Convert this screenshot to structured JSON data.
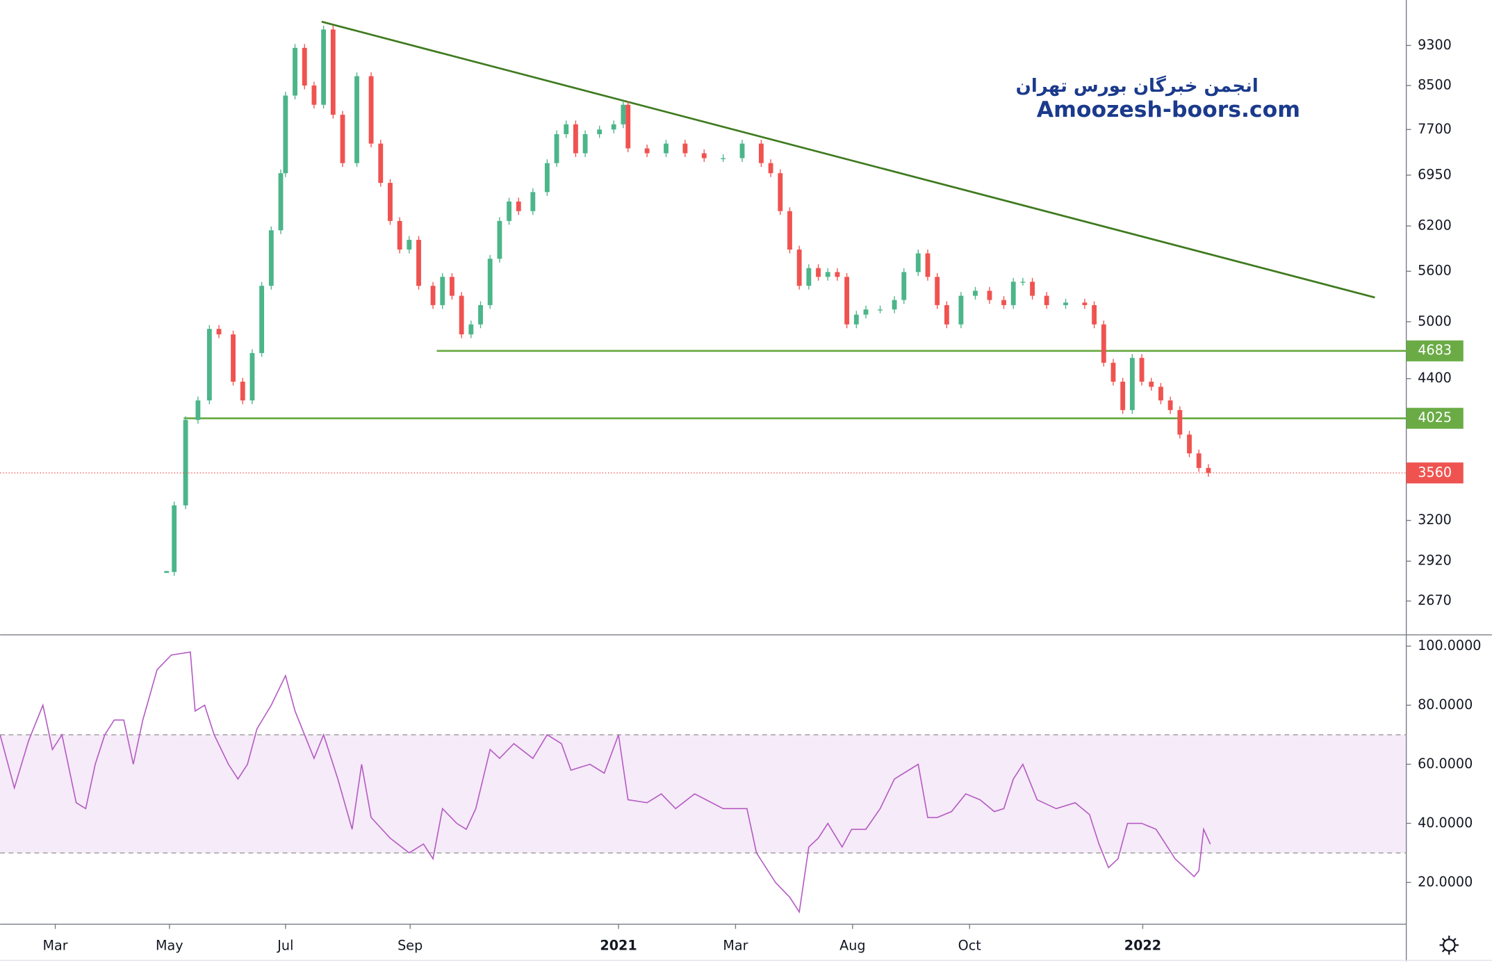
{
  "chart_data": [
    {
      "type": "candlestick",
      "annotations": [
        "انجمن خبرگان بورس تهران",
        "Amoozesh-boors.com"
      ],
      "x": [
        35,
        36.6,
        39,
        41.6,
        44,
        46,
        49,
        51,
        53,
        55,
        57,
        59,
        60,
        62,
        64,
        66,
        68,
        70,
        72,
        75,
        78,
        80,
        82,
        84,
        86,
        88,
        91,
        93,
        95,
        97,
        99,
        101,
        103,
        105,
        107,
        109,
        112,
        115,
        117,
        119,
        121,
        123,
        126,
        129,
        131,
        132,
        136,
        140,
        144,
        148,
        152,
        156,
        160,
        162,
        164,
        166,
        168,
        170,
        172,
        174,
        176,
        178,
        180,
        182,
        185,
        188,
        190,
        193,
        195,
        197,
        199,
        202,
        205,
        208,
        211,
        213,
        215,
        217,
        220,
        224,
        228,
        230,
        232,
        234,
        236,
        238,
        240,
        242,
        244,
        246,
        248,
        250,
        252,
        254
      ],
      "values": [
        2850,
        3310,
        4010,
        4190,
        4920,
        4860,
        4370,
        4190,
        4660,
        5420,
        6140,
        6980,
        8310,
        9250,
        8500,
        8140,
        9640,
        7960,
        7140,
        8680,
        7460,
        6830,
        6270,
        5880,
        6010,
        5420,
        5190,
        5530,
        5300,
        4860,
        4970,
        5190,
        5760,
        6270,
        6550,
        6410,
        6690,
        7140,
        7620,
        7790,
        7300,
        7620,
        7700,
        7790,
        8140,
        7380,
        7300,
        7460,
        7300,
        7220,
        7220,
        7460,
        7140,
        6980,
        6410,
        5880,
        5420,
        5640,
        5530,
        5590,
        5530,
        4970,
        5080,
        5140,
        5140,
        5250,
        5590,
        5830,
        5530,
        5190,
        4970,
        5300,
        5360,
        5250,
        5190,
        5470,
        5470,
        5300,
        5190,
        5220,
        5190,
        4970,
        4560,
        4370,
        4100,
        4610,
        4370,
        4320,
        4190,
        4100,
        3880,
        3720,
        3600,
        3560
      ],
      "up_color": "#4cb58a",
      "down_color": "#ef5350",
      "last_color": "#ef5350",
      "xlim": [
        0,
        295.6
      ],
      "ylim": [
        2480,
        10300
      ],
      "log_scale": true,
      "yticks": [
        9300,
        8500,
        7700,
        6950,
        6200,
        5600,
        5000,
        4400,
        3200,
        2920,
        2670
      ],
      "xticks": [
        {
          "value": 11.6,
          "label": "Mar"
        },
        {
          "value": 35.6,
          "label": "May"
        },
        {
          "value": 60,
          "label": "Jul"
        },
        {
          "value": 86.2,
          "label": "Sep"
        },
        {
          "value": 130,
          "label": "2021"
        },
        {
          "value": 154.6,
          "label": "Mar"
        },
        {
          "value": 179.2,
          "label": "Aug"
        },
        {
          "value": 203.8,
          "label": "Oct"
        },
        {
          "value": 240.2,
          "label": "2022"
        }
      ],
      "levels": [
        {
          "value": 4683,
          "x_start": 91.8,
          "color": "#6aab46"
        },
        {
          "value": 4025,
          "x_start": 38.6,
          "color": "#6aab46"
        }
      ],
      "trendline": {
        "x": [
          67.6,
          289
        ],
        "values": [
          9810,
          5280
        ],
        "color": "#3f7a1f"
      }
    },
    {
      "type": "line",
      "x": [
        0,
        3,
        6,
        9,
        11,
        13,
        16,
        18,
        20,
        22,
        24,
        26,
        28,
        30,
        33,
        36,
        40,
        41,
        43,
        45,
        48,
        50,
        52,
        54,
        57,
        60,
        62,
        64,
        66,
        68,
        71,
        74,
        76,
        78,
        82,
        86,
        89,
        91,
        93,
        96,
        98,
        100,
        103,
        105,
        108,
        112,
        115,
        118,
        120,
        124,
        127,
        130,
        132,
        136,
        139,
        142,
        146,
        152,
        155,
        157,
        159,
        163,
        166,
        168,
        170,
        172,
        174,
        177,
        179,
        182,
        185,
        188,
        191,
        193,
        195,
        197,
        200,
        203,
        206,
        209,
        211,
        213,
        215,
        218,
        222,
        226,
        229,
        231,
        233,
        235,
        237,
        240,
        243,
        245,
        247,
        249,
        251,
        252,
        253,
        254.4
      ],
      "values": [
        70,
        52,
        68,
        80,
        65,
        70,
        47,
        45,
        60,
        70,
        75,
        75,
        60,
        75,
        92,
        97,
        98,
        78,
        80,
        70,
        60,
        55,
        60,
        72,
        80,
        90,
        78,
        70,
        62,
        70,
        55,
        38,
        60,
        42,
        35,
        30,
        33,
        28,
        45,
        40,
        38,
        45,
        65,
        62,
        67,
        62,
        70,
        67,
        58,
        60,
        57,
        70,
        48,
        47,
        50,
        45,
        50,
        45,
        45,
        45,
        30,
        20,
        15,
        10,
        32,
        35,
        40,
        32,
        38,
        38,
        45,
        55,
        58,
        60,
        42,
        42,
        44,
        50,
        48,
        44,
        45,
        55,
        60,
        48,
        45,
        47,
        43,
        33,
        25,
        28,
        40,
        40,
        38,
        33,
        28,
        25,
        22,
        24,
        38,
        33
      ],
      "color": "#b55cc4",
      "band_color": "#b55cc4",
      "bands": [
        30,
        70
      ],
      "ylim": [
        6.2,
        103.5
      ],
      "yticks": [
        {
          "value": 100,
          "label": "100.0000"
        },
        {
          "value": 80,
          "label": "80.0000"
        },
        {
          "value": 60,
          "label": "60.0000"
        },
        {
          "value": 40,
          "label": "40.0000"
        },
        {
          "value": 20,
          "label": "20.0000"
        }
      ]
    }
  ]
}
